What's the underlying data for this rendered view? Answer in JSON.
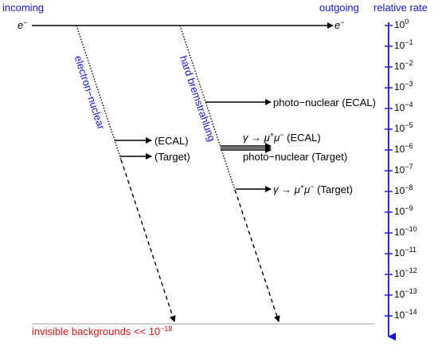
{
  "header": {
    "incoming": "incoming",
    "outgoing": "outgoing",
    "relative_rate": "relative rate"
  },
  "electron_in": "e",
  "electron_out": "e",
  "electron_charge": "−",
  "paths": {
    "electron_nuclear": "electron−nuclear",
    "hard_brem": "hard bremstrahlung"
  },
  "products": {
    "en_ecal": "(ECAL)",
    "en_target": "(Target)",
    "pn_ecal": "photo−nuclear (ECAL)",
    "mumu_ecal_prefix": "γ → μ",
    "mumu_ecal_plus": "+",
    "mumu_ecal_mid": "μ",
    "mumu_ecal_minus": "−",
    "mumu_ecal_suffix": " (ECAL)",
    "pn_target": "photo−nuclear (Target)",
    "mumu_target_prefix": "γ → μ",
    "mumu_target_plus": "+",
    "mumu_target_mid": "μ",
    "mumu_target_minus": "−",
    "mumu_target_suffix": " (Target)"
  },
  "footer": {
    "invisible_label": "invisible backgrounds << 10",
    "invisible_exp": "−18"
  },
  "rate_axis": {
    "base": "10",
    "exponents": [
      "0",
      "−1",
      "−2",
      "−3",
      "−4",
      "−5",
      "−6",
      "−7",
      "−8",
      "−9",
      "−10",
      "−11",
      "−12",
      "−13",
      "−14"
    ]
  },
  "colors": {
    "axis": "#1414d2",
    "label_blue": "#1414d2",
    "invisible": "#e11414"
  }
}
